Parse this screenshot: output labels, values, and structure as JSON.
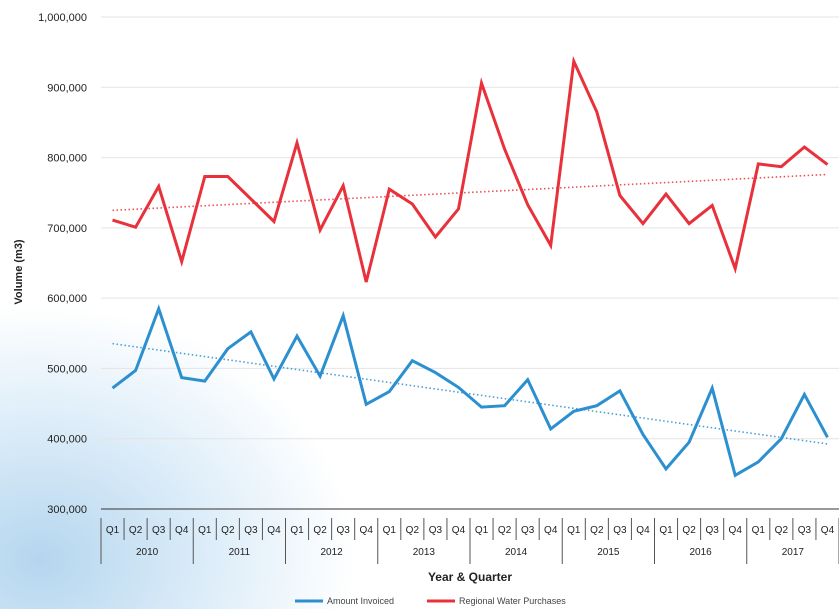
{
  "chart_data": {
    "type": "line",
    "title": "",
    "xlabel": "Year & Quarter",
    "ylabel": "Volume (m3)",
    "ylim": [
      300000,
      1000000
    ],
    "yticks": [
      "300,000",
      "400,000",
      "500,000",
      "600,000",
      "700,000",
      "800,000",
      "900,000",
      "1,000,000"
    ],
    "grid": true,
    "legend_position": "bottom",
    "quarters": [
      "Q1",
      "Q2",
      "Q3",
      "Q4",
      "Q1",
      "Q2",
      "Q3",
      "Q4",
      "Q1",
      "Q2",
      "Q3",
      "Q4",
      "Q1",
      "Q2",
      "Q3",
      "Q4",
      "Q1",
      "Q2",
      "Q3",
      "Q4",
      "Q1",
      "Q2",
      "Q3",
      "Q4",
      "Q1",
      "Q2",
      "Q3",
      "Q4",
      "Q1",
      "Q2",
      "Q3",
      "Q4"
    ],
    "years": [
      "2010",
      "2011",
      "2012",
      "2013",
      "2014",
      "2015",
      "2016",
      "2017"
    ],
    "series": [
      {
        "name": "Amount Invoiced",
        "color": "#2b8fd0",
        "trendline": true,
        "values": [
          472000,
          497000,
          585000,
          487000,
          482000,
          528000,
          552000,
          485000,
          546000,
          489000,
          575000,
          449000,
          467000,
          511000,
          494000,
          473000,
          445000,
          447000,
          484000,
          414000,
          439000,
          447000,
          468000,
          406000,
          357000,
          395000,
          472000,
          348000,
          367000,
          400000,
          463000,
          402000
        ]
      },
      {
        "name": "Regional Water Purchases",
        "color": "#e8313a",
        "trendline": true,
        "values": [
          711000,
          701000,
          759000,
          652000,
          773000,
          773000,
          741000,
          709000,
          821000,
          697000,
          760000,
          623000,
          755000,
          734000,
          687000,
          727000,
          906000,
          812000,
          733000,
          675000,
          937000,
          865000,
          746000,
          706000,
          748000,
          706000,
          732000,
          642000,
          791000,
          787000,
          815000,
          790000
        ]
      }
    ]
  }
}
